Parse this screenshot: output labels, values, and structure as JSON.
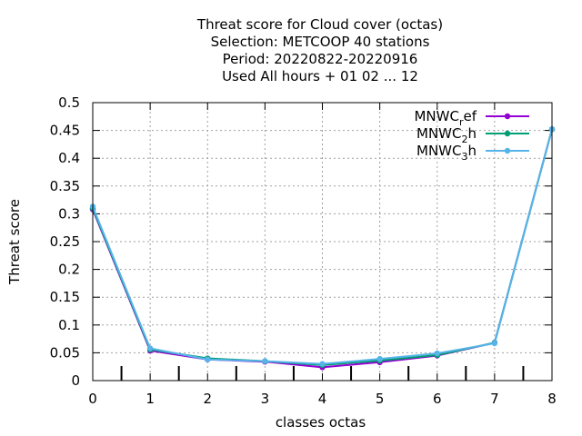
{
  "chart_data": {
    "type": "line",
    "title": [
      "Threat score  for Cloud cover (octas)",
      "Selection: METCOOP     40 stations",
      "Period: 20220822-20220916",
      "Used  All hours + 01 02 ... 12"
    ],
    "xlabel": "classes octas",
    "ylabel": "Threat score",
    "x": [
      0,
      1,
      2,
      3,
      4,
      5,
      6,
      7,
      8
    ],
    "xlim": [
      0,
      8
    ],
    "ylim": [
      0,
      0.5
    ],
    "x_ticks": [
      "0",
      "1",
      "2",
      "3",
      "4",
      "5",
      "6",
      "7",
      "8"
    ],
    "y_ticks": [
      "0",
      "0.05",
      "0.1",
      "0.15",
      "0.2",
      "0.25",
      "0.3",
      "0.35",
      "0.4",
      "0.45",
      "0.5"
    ],
    "grid": true,
    "legend_position": "top-right",
    "series": [
      {
        "name": "MNWC_ref",
        "legend": {
          "main": "MNWC",
          "sub": "r",
          "rest": "ef"
        },
        "color": "#9400d3",
        "values": [
          0.308,
          0.054,
          0.038,
          0.034,
          0.024,
          0.033,
          0.045,
          0.068,
          0.452
        ]
      },
      {
        "name": "MNWC_2h",
        "legend": {
          "main": "MNWC",
          "sub": "2",
          "rest": "h"
        },
        "color": "#009e73",
        "values": [
          0.31,
          0.056,
          0.04,
          0.035,
          0.028,
          0.036,
          0.046,
          0.068,
          0.452
        ]
      },
      {
        "name": "MNWC_3h",
        "legend": {
          "main": "MNWC",
          "sub": "3",
          "rest": "h"
        },
        "color": "#56b4e9",
        "values": [
          0.313,
          0.058,
          0.038,
          0.035,
          0.03,
          0.039,
          0.049,
          0.067,
          0.452
        ]
      }
    ]
  }
}
